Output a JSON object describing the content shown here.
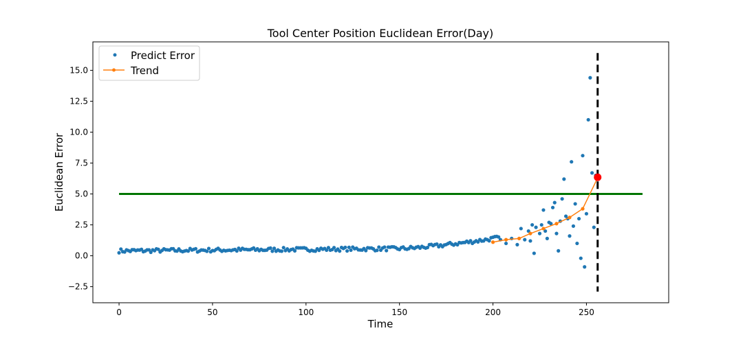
{
  "chart_data": {
    "type": "scatter",
    "title": "Tool Center Position Euclidean Error(Day)",
    "xlabel": "Time",
    "ylabel": "Euclidean Error",
    "xlim": [
      -14,
      294
    ],
    "ylim": [
      -3.8,
      17.3
    ],
    "xticks": [
      0,
      50,
      100,
      150,
      200,
      250
    ],
    "yticks": [
      -2.5,
      0.0,
      2.5,
      5.0,
      7.5,
      10.0,
      12.5,
      15.0
    ],
    "ytick_labels": [
      "−2.5",
      "0.0",
      "2.5",
      "5.0",
      "7.5",
      "10.0",
      "12.5",
      "15.0"
    ],
    "grid": false,
    "legend_position": "top-left",
    "series": [
      {
        "name": "Predict Error",
        "kind": "scatter",
        "color": "#1f77b4",
        "x": [],
        "y": [],
        "spikes": [
          {
            "x": 204,
            "y": 1.3
          },
          {
            "x": 207,
            "y": 1.0
          },
          {
            "x": 210,
            "y": 1.4
          },
          {
            "x": 213,
            "y": 0.9
          },
          {
            "x": 215,
            "y": 2.2
          },
          {
            "x": 217,
            "y": 1.3
          },
          {
            "x": 219,
            "y": 2.0
          },
          {
            "x": 220,
            "y": 1.2
          },
          {
            "x": 221,
            "y": 2.5
          },
          {
            "x": 222,
            "y": 0.2
          },
          {
            "x": 223,
            "y": 2.3
          },
          {
            "x": 225,
            "y": 1.8
          },
          {
            "x": 226,
            "y": 2.5
          },
          {
            "x": 227,
            "y": 3.7
          },
          {
            "x": 228,
            "y": 2.0
          },
          {
            "x": 229,
            "y": 1.4
          },
          {
            "x": 230,
            "y": 2.7
          },
          {
            "x": 231,
            "y": 2.6
          },
          {
            "x": 232,
            "y": 3.9
          },
          {
            "x": 233,
            "y": 4.3
          },
          {
            "x": 234,
            "y": 1.8
          },
          {
            "x": 235,
            "y": 0.4
          },
          {
            "x": 236,
            "y": 2.8
          },
          {
            "x": 237,
            "y": 4.6
          },
          {
            "x": 238,
            "y": 6.2
          },
          {
            "x": 239,
            "y": 3.2
          },
          {
            "x": 240,
            "y": 3.0
          },
          {
            "x": 241,
            "y": 1.6
          },
          {
            "x": 242,
            "y": 7.6
          },
          {
            "x": 243,
            "y": 2.4
          },
          {
            "x": 244,
            "y": 4.2
          },
          {
            "x": 245,
            "y": 1.0
          },
          {
            "x": 246,
            "y": 3.0
          },
          {
            "x": 247,
            "y": -0.2
          },
          {
            "x": 248,
            "y": 8.1
          },
          {
            "x": 249,
            "y": -0.9
          },
          {
            "x": 250,
            "y": 3.4
          },
          {
            "x": 251,
            "y": 11.0
          },
          {
            "x": 252,
            "y": 14.4
          },
          {
            "x": 253,
            "y": 6.7
          },
          {
            "x": 254,
            "y": 2.3
          },
          {
            "x": 255,
            "y": 6.5
          }
        ]
      },
      {
        "name": "Trend",
        "kind": "line",
        "color": "#ff7f0e",
        "x": [
          200,
          207,
          214,
          220,
          227,
          234,
          241,
          248,
          256
        ],
        "y": [
          1.1,
          1.3,
          1.4,
          1.8,
          2.2,
          2.6,
          3.1,
          3.8,
          6.3
        ]
      }
    ],
    "threshold_line": {
      "y": 5.0,
      "x_start": 0,
      "x_end": 280,
      "color": "#007500"
    },
    "vertical_marker": {
      "x": 256,
      "y_start": -2.9,
      "y_end": 16.4,
      "color": "#000000"
    },
    "highlight_point": {
      "x": 256,
      "y": 6.35,
      "color": "#ff0000"
    }
  }
}
